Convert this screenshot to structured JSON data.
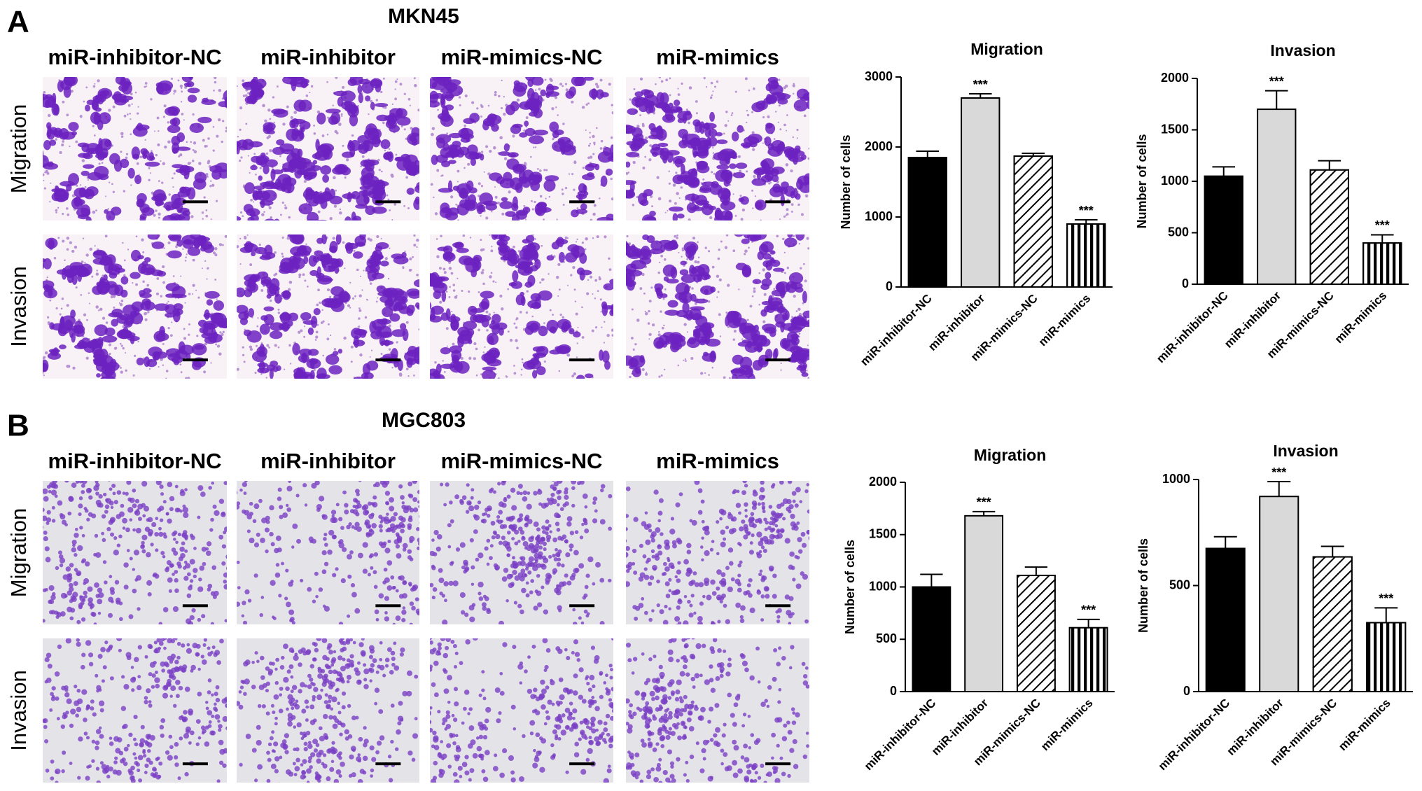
{
  "panels": [
    {
      "letter": "A",
      "title": "MKN45",
      "columns": [
        "miR-inhibitor-NC",
        "miR-inhibitor",
        "miR-mimics-NC",
        "miR-mimics"
      ],
      "rows": [
        "Migration",
        "Invasion"
      ]
    },
    {
      "letter": "B",
      "title": "MGC803",
      "columns": [
        "miR-inhibitor-NC",
        "miR-inhibitor",
        "miR-mimics-NC",
        "miR-mimics"
      ],
      "rows": [
        "Migration",
        "Invasion"
      ]
    }
  ],
  "chart_data": [
    {
      "type": "bar",
      "title": "Migration",
      "y_label": "Number of cells",
      "categories": [
        "miR-inhibitor-NC",
        "miR-inhibitor",
        "miR-mimics-NC",
        "miR-mimics"
      ],
      "values": [
        1850,
        2700,
        1870,
        900
      ],
      "errors": [
        90,
        60,
        40,
        60
      ],
      "annotations": [
        null,
        "***",
        null,
        "***"
      ],
      "colors": [
        "#000000",
        "#d9d9d9",
        "#ffffff",
        "#ffffff"
      ],
      "patterns": [
        null,
        null,
        "diagonal",
        "vertical"
      ],
      "ylim": [
        0,
        3000
      ],
      "yticks": [
        0,
        1000,
        2000,
        3000
      ]
    },
    {
      "type": "bar",
      "title": "Invasion",
      "y_label": "Number of cells",
      "categories": [
        "miR-inhibitor-NC",
        "miR-inhibitor",
        "miR-mimics-NC",
        "miR-mimics"
      ],
      "values": [
        1050,
        1700,
        1110,
        400
      ],
      "errors": [
        90,
        180,
        90,
        80
      ],
      "annotations": [
        null,
        "***",
        null,
        "***"
      ],
      "colors": [
        "#000000",
        "#d9d9d9",
        "#ffffff",
        "#ffffff"
      ],
      "patterns": [
        null,
        null,
        "diagonal",
        "vertical"
      ],
      "ylim": [
        0,
        2000
      ],
      "yticks": [
        0,
        500,
        1000,
        1500,
        2000
      ]
    },
    {
      "type": "bar",
      "title": "Migration",
      "y_label": "Number of cells",
      "categories": [
        "miR-inhibitor-NC",
        "miR-inhibitor",
        "miR-mimics-NC",
        "miR-mimics"
      ],
      "values": [
        1000,
        1680,
        1110,
        610
      ],
      "errors": [
        120,
        40,
        80,
        80
      ],
      "annotations": [
        null,
        "***",
        null,
        "***"
      ],
      "colors": [
        "#000000",
        "#d9d9d9",
        "#ffffff",
        "#ffffff"
      ],
      "patterns": [
        null,
        null,
        "diagonal",
        "vertical"
      ],
      "ylim": [
        0,
        2000
      ],
      "yticks": [
        0,
        500,
        1000,
        1500,
        2000
      ]
    },
    {
      "type": "bar",
      "title": "Invasion",
      "y_label": "Number of cells",
      "categories": [
        "miR-inhibitor-NC",
        "miR-inhibitor",
        "miR-mimics-NC",
        "miR-mimics"
      ],
      "values": [
        675,
        920,
        635,
        325
      ],
      "errors": [
        55,
        70,
        50,
        70
      ],
      "annotations": [
        null,
        "***",
        null,
        "***"
      ],
      "colors": [
        "#000000",
        "#d9d9d9",
        "#ffffff",
        "#ffffff"
      ],
      "patterns": [
        null,
        null,
        "diagonal",
        "vertical"
      ],
      "ylim": [
        0,
        1000
      ],
      "yticks": [
        0,
        500,
        1000
      ]
    }
  ]
}
